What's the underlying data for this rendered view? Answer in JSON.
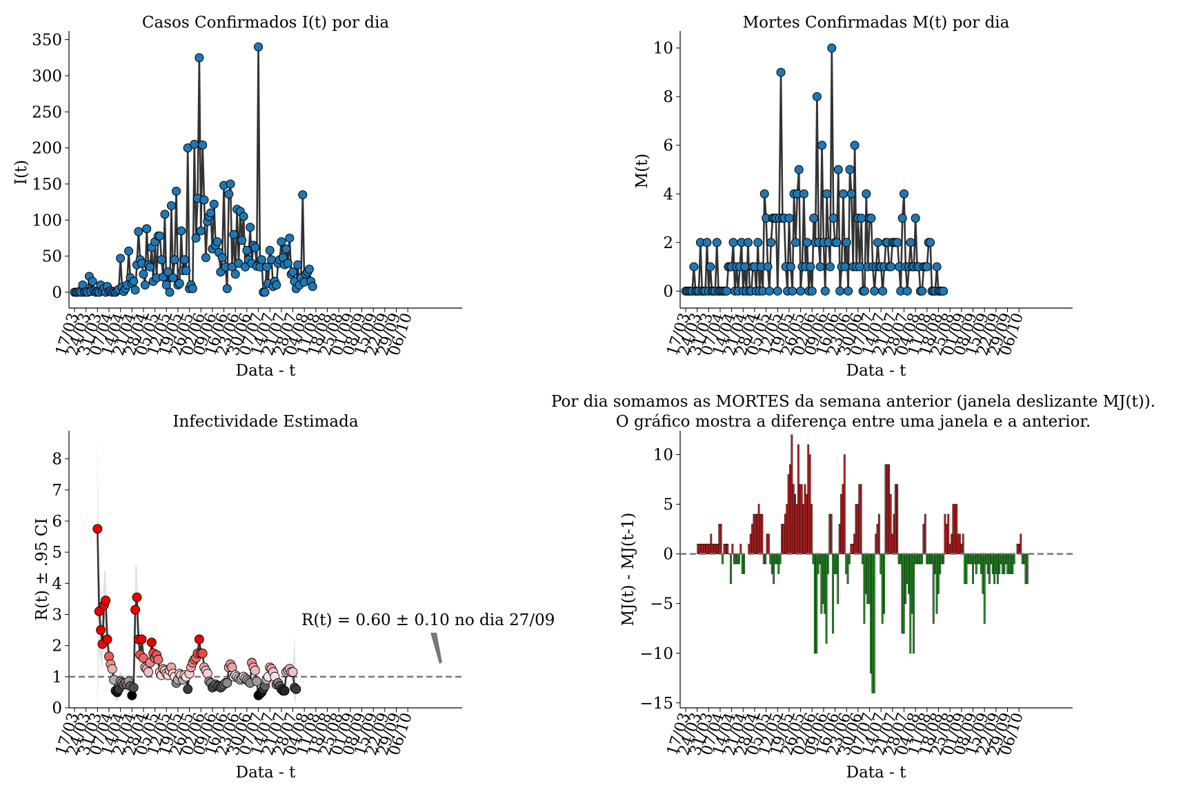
{
  "colors": {
    "blue": "#1f77b4",
    "line": "#333333",
    "bar_pos": "#d62728",
    "bar_neg": "#2ca02c",
    "ref_line": "#777777",
    "ci": "#d9d9d9"
  },
  "x_ticks": [
    "17/03",
    "24/03",
    "31/03",
    "07/04",
    "14/04",
    "21/04",
    "28/04",
    "05/05",
    "12/05",
    "19/05",
    "26/05",
    "02/06",
    "09/06",
    "16/06",
    "23/06",
    "30/06",
    "07/07",
    "14/07",
    "21/07",
    "28/07",
    "04/08",
    "11/08",
    "18/08",
    "25/08",
    "01/09",
    "08/09",
    "15/09",
    "22/09",
    "29/09",
    "06/10"
  ],
  "chart_data": [
    {
      "id": "cases",
      "type": "line",
      "title": "Casos Confirmados I(t) por dia",
      "xlabel": "Data - t",
      "ylabel": "I(t)",
      "ylim": [
        -22,
        362
      ],
      "yticks": [
        0,
        50,
        100,
        150,
        200,
        250,
        300,
        350
      ],
      "grid": false,
      "series": [
        {
          "x_start": "17/03",
          "values": [
            0,
            0,
            0,
            1,
            0,
            10,
            0,
            1,
            0,
            22,
            1,
            15,
            2,
            0,
            1,
            0,
            10,
            2,
            5,
            0,
            8,
            1,
            2,
            0,
            1,
            0,
            2,
            4,
            47,
            7,
            1,
            5,
            10,
            57,
            20,
            12,
            15,
            3,
            38,
            84,
            45,
            40,
            25,
            10,
            88,
            38,
            35,
            62,
            15,
            70,
            20,
            78,
            78,
            45,
            21,
            108,
            10,
            28,
            0,
            120,
            20,
            45,
            140,
            10,
            12,
            85,
            30,
            45,
            30,
            200,
            5,
            10,
            5,
            205,
            75,
            130,
            325,
            85,
            204,
            128,
            48,
            98,
            105,
            110,
            60,
            122,
            65,
            70,
            55,
            28,
            48,
            148,
            35,
            5,
            136,
            150,
            35,
            80,
            25,
            115,
            40,
            112,
            72,
            105,
            35,
            58,
            45,
            90,
            40,
            65,
            62,
            36,
            340,
            35,
            45,
            0,
            0,
            35,
            12,
            58,
            45,
            8,
            15,
            10,
            40,
            45,
            70,
            48,
            38,
            60,
            40,
            75,
            25,
            28,
            15,
            5,
            38,
            10,
            20,
            135,
            14,
            25,
            28,
            32,
            15,
            8
          ]
        }
      ]
    },
    {
      "id": "deaths",
      "type": "line",
      "title": "Mortes Confirmadas M(t) por dia",
      "xlabel": "Data - t",
      "ylabel": "M(t)",
      "ylim": [
        -0.7,
        10.7
      ],
      "yticks": [
        0,
        2,
        4,
        6,
        8,
        10
      ],
      "grid": false,
      "series": [
        {
          "x_start": "17/03",
          "values": [
            0,
            0,
            0,
            0,
            0,
            1,
            0,
            0,
            0,
            2,
            0,
            0,
            0,
            2,
            0,
            1,
            0,
            0,
            0,
            2,
            0,
            0,
            0,
            0,
            0,
            0,
            1,
            1,
            1,
            2,
            0,
            1,
            0,
            1,
            2,
            0,
            1,
            0,
            2,
            0,
            0,
            1,
            1,
            0,
            2,
            0,
            1,
            0,
            4,
            3,
            1,
            0,
            2,
            3,
            3,
            3,
            0,
            3,
            9,
            3,
            3,
            1,
            0,
            3,
            1,
            0,
            4,
            2,
            4,
            5,
            0,
            1,
            4,
            1,
            2,
            0,
            1,
            0,
            3,
            2,
            8,
            2,
            1,
            6,
            2,
            0,
            4,
            2,
            1,
            10,
            3,
            2,
            2,
            5,
            0,
            1,
            4,
            1,
            2,
            0,
            5,
            4,
            1,
            6,
            1,
            3,
            1,
            3,
            0,
            0,
            4,
            1,
            3,
            3,
            1,
            0,
            1,
            2,
            1,
            1,
            0,
            1,
            2,
            2,
            1,
            1,
            2,
            2,
            2,
            2,
            1,
            0,
            3,
            4,
            1,
            0,
            1,
            2,
            1,
            1,
            3,
            1,
            1,
            0,
            0,
            1,
            1,
            1,
            2,
            2,
            0,
            0,
            0,
            1,
            0,
            0,
            0,
            0
          ]
        }
      ]
    },
    {
      "id": "rt",
      "type": "scatter",
      "title": "Infectividade Estimada",
      "xlabel": "Data - t",
      "ylabel": "R(t) ± .95 CI",
      "ylim": [
        0,
        8.9
      ],
      "yticks": [
        0,
        1,
        2,
        3,
        4,
        5,
        6,
        7,
        8
      ],
      "reference_line": 1,
      "annotation": "R(t) = 0.60 ± 0.10 no dia 27/09",
      "grid": false,
      "series": [
        {
          "x_start": "31/03",
          "values": [
            5.75,
            3.1,
            2.5,
            2.05,
            3.3,
            3.45,
            2.2,
            1.65,
            1.4,
            1.25,
            0.9,
            0.55,
            0.5,
            0.6,
            0.85,
            0.8,
            0.75,
            0.8,
            0.75,
            0.85,
            0.7,
            0.4,
            0.65,
            3.15,
            3.55,
            2.2,
            1.7,
            2.2,
            1.6,
            1.3,
            1.25,
            1.15,
            1.45,
            2.1,
            1.75,
            1.6,
            1.7,
            1.55,
            1.15,
            1.05,
            1.25,
            1.2,
            1.1,
            1.05,
            1.2,
            1.3,
            1.1,
            1.0,
            0.8,
            0.9,
            1.1,
            1.05,
            0.9,
            1.05,
            1.0,
            0.6,
            1.1,
            1.3,
            1.45,
            1.55,
            1.6,
            1.75,
            2.2,
            1.75,
            1.75,
            1.3,
            1.2,
            1.1,
            0.85,
            0.8,
            0.65,
            0.7,
            0.75,
            0.7,
            0.7,
            0.65,
            0.7,
            0.75,
            0.8,
            0.8,
            1.3,
            1.4,
            1.3,
            1.0,
            1.05,
            1.0,
            0.95,
            0.9,
            0.95,
            1.0,
            0.95,
            0.9,
            0.85,
            0.8,
            1.45,
            1.3,
            1.2,
            0.85,
            0.4,
            0.45,
            0.5,
            0.6,
            0.7,
            0.9,
            1.0,
            1.3,
            1.25,
            1.15,
            1.0,
            0.75,
            0.8,
            0.7,
            0.6,
            0.55,
            0.55,
            1.15,
            1.2,
            1.25,
            1.15,
            1.15,
            0.65,
            0.6
          ],
          "ci_low": [
            0,
            1.8,
            1.5,
            1.2,
            2.3,
            2.5,
            1.6,
            1.2,
            1.0,
            0.9,
            0.5,
            0.25,
            0.2,
            0.3,
            0.5,
            0.55,
            0.5,
            0.55,
            0.5,
            0.6,
            0.45,
            0.1,
            0.3,
            1.6,
            2.5,
            1.6,
            1.25,
            1.7,
            1.25,
            1.0,
            1.0,
            0.9,
            1.15,
            1.75,
            1.45,
            1.3,
            1.4,
            1.3,
            0.95,
            0.85,
            1.05,
            1.0,
            0.9,
            0.85,
            1.0,
            1.1,
            0.9,
            0.85,
            0.6,
            0.7,
            0.9,
            0.85,
            0.7,
            0.85,
            0.8,
            0.35,
            0.9,
            1.1,
            1.25,
            1.35,
            1.4,
            1.55,
            1.9,
            1.55,
            1.55,
            1.1,
            1.0,
            0.9,
            0.65,
            0.6,
            0.45,
            0.5,
            0.55,
            0.5,
            0.5,
            0.45,
            0.5,
            0.55,
            0.6,
            0.6,
            1.1,
            1.2,
            1.1,
            0.85,
            0.9,
            0.85,
            0.8,
            0.75,
            0.8,
            0.85,
            0.8,
            0.75,
            0.7,
            0.65,
            1.2,
            1.1,
            1.0,
            0.65,
            0.2,
            0.25,
            0.3,
            0.4,
            0.5,
            0.7,
            0.8,
            1.1,
            1.05,
            0.95,
            0.8,
            0.55,
            0.6,
            0.5,
            0.4,
            0.35,
            0.35,
            0.9,
            1.0,
            1.0,
            0.9,
            0.85,
            0.1,
            0.3
          ],
          "ci_high": [
            8.7,
            4.4,
            3.6,
            3.0,
            4.4,
            4.4,
            2.9,
            2.2,
            1.9,
            1.7,
            1.3,
            0.9,
            0.85,
            1.0,
            1.2,
            1.1,
            1.0,
            1.1,
            1.0,
            1.1,
            1.0,
            0.8,
            1.0,
            4.6,
            4.6,
            2.8,
            2.2,
            2.7,
            2.0,
            1.6,
            1.55,
            1.45,
            1.8,
            2.45,
            2.05,
            1.9,
            2.0,
            1.8,
            1.35,
            1.25,
            1.45,
            1.4,
            1.3,
            1.25,
            1.4,
            1.5,
            1.3,
            1.2,
            1.0,
            1.1,
            1.3,
            1.25,
            1.1,
            1.25,
            1.2,
            0.85,
            1.3,
            1.5,
            1.65,
            1.75,
            1.8,
            1.95,
            2.5,
            1.95,
            1.95,
            1.5,
            1.4,
            1.3,
            1.05,
            1.0,
            0.85,
            0.9,
            0.95,
            0.9,
            0.9,
            0.85,
            0.9,
            0.95,
            1.0,
            1.0,
            1.5,
            1.6,
            1.5,
            1.2,
            1.25,
            1.2,
            1.15,
            1.1,
            1.15,
            1.2,
            1.15,
            1.1,
            1.05,
            1.0,
            1.7,
            1.5,
            1.4,
            1.05,
            0.6,
            0.65,
            0.7,
            0.8,
            0.9,
            1.1,
            1.2,
            1.5,
            1.45,
            1.35,
            1.2,
            0.95,
            1.0,
            0.9,
            0.8,
            0.75,
            0.75,
            1.4,
            1.4,
            1.5,
            1.4,
            1.45,
            2.3,
            0.9
          ]
        }
      ]
    },
    {
      "id": "window",
      "type": "bar",
      "title": "Por dia somamos as MORTES da semana anterior (janela deslizante MJ(t)).",
      "subtitle": "O gráfico mostra a diferença entre uma janela e a anterior.",
      "xlabel": "Data - t",
      "ylabel": "MJ(t) - MJ(t-1)",
      "ylim": [
        -15.5,
        12.4
      ],
      "yticks": [
        -15,
        -10,
        -5,
        0,
        5,
        10
      ],
      "reference_line": 0,
      "grid": false,
      "series": [
        {
          "x_start": "24/03",
          "values": [
            1,
            1,
            1,
            1,
            1,
            1,
            1,
            1,
            2,
            1,
            1,
            1,
            1,
            3,
            3,
            -1,
            1,
            1,
            1,
            0,
            -3,
            1,
            -1,
            -1,
            -1,
            -1,
            1,
            -2,
            -2,
            0,
            0,
            1,
            2,
            3,
            4,
            4,
            4,
            5,
            4,
            4,
            -1,
            -1,
            2,
            2,
            -1,
            -2,
            -3,
            -1,
            -1,
            -2,
            -1,
            3,
            3,
            4,
            5,
            8,
            9,
            12,
            7,
            6,
            5,
            11,
            7,
            7,
            5,
            7,
            6,
            11,
            10,
            5,
            -1,
            -10,
            -10,
            -2,
            -1,
            -6,
            -5,
            -6,
            -9,
            -2,
            4,
            4,
            -8,
            -2,
            -2,
            -5,
            3,
            6,
            7,
            10,
            -2,
            -3,
            -1,
            1,
            1,
            2,
            5,
            5,
            7,
            7,
            -1,
            -7,
            -4,
            -5,
            -5,
            -12,
            -14,
            -14,
            2,
            3,
            4,
            -2,
            -7,
            -6,
            9,
            9,
            9,
            6,
            2,
            4,
            7,
            7,
            -1,
            -1,
            -8,
            -8,
            -5,
            -3,
            -4,
            -10,
            -6,
            -10,
            -1,
            -1,
            -1,
            -1,
            -1,
            3,
            4,
            -1,
            -1,
            -1,
            -1,
            -7,
            -2,
            -6,
            -4,
            -2,
            -1,
            -1,
            4,
            3,
            4,
            1,
            2,
            5,
            5,
            5,
            2,
            2,
            1,
            2,
            -3,
            -3,
            -1,
            -1,
            -1,
            -3,
            -1,
            -2,
            -1,
            -1,
            -2,
            -4,
            -7,
            -1,
            -2,
            -3,
            -1,
            -2,
            -3,
            -2,
            -3,
            -2,
            -1,
            -2,
            -2,
            -1,
            -2,
            -2,
            -2,
            -2,
            -1,
            0,
            1,
            1,
            2,
            -1,
            -1,
            -3,
            -3
          ]
        }
      ]
    }
  ]
}
